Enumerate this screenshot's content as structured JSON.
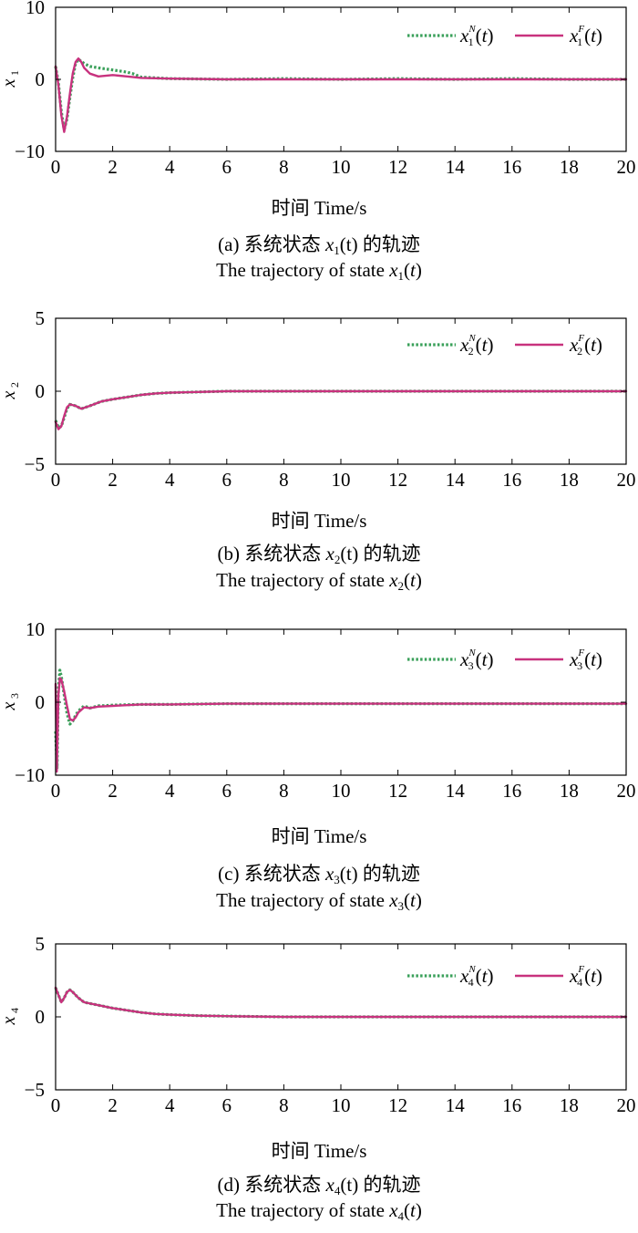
{
  "chart_data": [
    {
      "type": "line",
      "ylabel": "x1",
      "ylabel_main": "x",
      "ylabel_sub": "1",
      "xlabel": "时间 Time/s",
      "caption_prefix": "(a) 系统状态",
      "caption_state": "x",
      "caption_sub": "1",
      "caption_suffix": "(t) 的轨迹",
      "caption_en_prefix": "The trajectory of state",
      "xlim": [
        0,
        20
      ],
      "ylim": [
        -10,
        10
      ],
      "x_ticks": [
        "0",
        "2",
        "4",
        "6",
        "8",
        "10",
        "12",
        "14",
        "16",
        "18",
        "20"
      ],
      "y_ticks": [
        "10",
        "0",
        "−10"
      ],
      "legend_position": "top-right",
      "series": [
        {
          "name": "x1^N(t)",
          "legend_var": "x",
          "legend_sup": "N",
          "legend_sub": "1",
          "legend_arg": "(t)",
          "color": "#3aa05a",
          "style": "dotted",
          "points": [
            [
              0,
              1.8
            ],
            [
              0.1,
              -0.5
            ],
            [
              0.2,
              -4.5
            ],
            [
              0.3,
              -7.0
            ],
            [
              0.4,
              -5.5
            ],
            [
              0.5,
              -2.5
            ],
            [
              0.6,
              0.2
            ],
            [
              0.7,
              2.2
            ],
            [
              0.8,
              2.8
            ],
            [
              1.0,
              2.2
            ],
            [
              1.2,
              1.8
            ],
            [
              1.5,
              1.6
            ],
            [
              2.0,
              1.3
            ],
            [
              2.5,
              1.0
            ],
            [
              2.7,
              0.8
            ],
            [
              3.0,
              0.3
            ],
            [
              4,
              0.1
            ],
            [
              6,
              0.0
            ],
            [
              8,
              0.1
            ],
            [
              10,
              0.0
            ],
            [
              12,
              0.1
            ],
            [
              14,
              0.0
            ],
            [
              16,
              0.1
            ],
            [
              18,
              0.0
            ],
            [
              20,
              0.0
            ]
          ]
        },
        {
          "name": "x1^F(t)",
          "legend_var": "x",
          "legend_sup": "F",
          "legend_sub": "1",
          "legend_arg": "(t)",
          "color": "#c8327e",
          "style": "solid",
          "points": [
            [
              0,
              1.8
            ],
            [
              0.1,
              -0.8
            ],
            [
              0.2,
              -5.0
            ],
            [
              0.3,
              -7.3
            ],
            [
              0.4,
              -5.2
            ],
            [
              0.5,
              -2.0
            ],
            [
              0.6,
              0.8
            ],
            [
              0.7,
              2.4
            ],
            [
              0.8,
              2.9
            ],
            [
              0.9,
              2.4
            ],
            [
              1.0,
              1.6
            ],
            [
              1.2,
              0.8
            ],
            [
              1.5,
              0.4
            ],
            [
              2.0,
              0.6
            ],
            [
              2.5,
              0.4
            ],
            [
              3.0,
              0.2
            ],
            [
              4,
              0.1
            ],
            [
              6,
              0.0
            ],
            [
              8,
              0.0
            ],
            [
              10,
              0.0
            ],
            [
              12,
              0.0
            ],
            [
              14,
              0.0
            ],
            [
              16,
              0.0
            ],
            [
              18,
              0.0
            ],
            [
              20,
              0.0
            ]
          ]
        }
      ]
    },
    {
      "type": "line",
      "ylabel": "x2",
      "ylabel_main": "x",
      "ylabel_sub": "2",
      "xlabel": "时间 Time/s",
      "caption_prefix": "(b) 系统状态",
      "caption_state": "x",
      "caption_sub": "2",
      "caption_suffix": "(t) 的轨迹",
      "caption_en_prefix": "The trajectory of state",
      "xlim": [
        0,
        20
      ],
      "ylim": [
        -5,
        5
      ],
      "x_ticks": [
        "0",
        "2",
        "4",
        "6",
        "8",
        "10",
        "12",
        "14",
        "16",
        "18",
        "20"
      ],
      "y_ticks": [
        "5",
        "0",
        "−5"
      ],
      "legend_position": "top-right",
      "series": [
        {
          "name": "x2^N(t)",
          "legend_var": "x",
          "legend_sup": "N",
          "legend_sub": "2",
          "legend_arg": "(t)",
          "color": "#3aa05a",
          "style": "dotted",
          "points": [
            [
              0,
              -2.0
            ],
            [
              0.1,
              -2.5
            ],
            [
              0.2,
              -2.4
            ],
            [
              0.3,
              -1.8
            ],
            [
              0.4,
              -1.2
            ],
            [
              0.5,
              -0.9
            ],
            [
              0.7,
              -1.0
            ],
            [
              0.9,
              -1.2
            ],
            [
              1.2,
              -1.0
            ],
            [
              1.6,
              -0.7
            ],
            [
              2.0,
              -0.55
            ],
            [
              2.5,
              -0.4
            ],
            [
              3.0,
              -0.25
            ],
            [
              3.5,
              -0.15
            ],
            [
              4,
              -0.1
            ],
            [
              5,
              -0.05
            ],
            [
              6,
              0.0
            ],
            [
              8,
              0.0
            ],
            [
              10,
              0.0
            ],
            [
              12,
              0.0
            ],
            [
              14,
              0.0
            ],
            [
              16,
              0.0
            ],
            [
              18,
              0.0
            ],
            [
              20,
              0.0
            ]
          ]
        },
        {
          "name": "x2^F(t)",
          "legend_var": "x",
          "legend_sup": "F",
          "legend_sub": "2",
          "legend_arg": "(t)",
          "color": "#c8327e",
          "style": "solid",
          "points": [
            [
              0,
              -2.1
            ],
            [
              0.1,
              -2.6
            ],
            [
              0.2,
              -2.4
            ],
            [
              0.3,
              -1.7
            ],
            [
              0.4,
              -1.1
            ],
            [
              0.5,
              -0.9
            ],
            [
              0.7,
              -1.0
            ],
            [
              0.9,
              -1.2
            ],
            [
              1.2,
              -1.0
            ],
            [
              1.6,
              -0.7
            ],
            [
              2.0,
              -0.55
            ],
            [
              2.5,
              -0.4
            ],
            [
              3.0,
              -0.25
            ],
            [
              3.5,
              -0.15
            ],
            [
              4,
              -0.1
            ],
            [
              5,
              -0.05
            ],
            [
              6,
              0.0
            ],
            [
              8,
              0.0
            ],
            [
              10,
              0.0
            ],
            [
              12,
              0.0
            ],
            [
              14,
              0.0
            ],
            [
              16,
              0.0
            ],
            [
              18,
              0.0
            ],
            [
              20,
              0.0
            ]
          ]
        }
      ]
    },
    {
      "type": "line",
      "ylabel": "x3",
      "ylabel_main": "x",
      "ylabel_sub": "3",
      "xlabel": "时间 Time/s",
      "caption_prefix": "(c) 系统状态",
      "caption_state": "x",
      "caption_sub": "3",
      "caption_suffix": "(t) 的轨迹",
      "caption_en_prefix": "The trajectory of state",
      "xlim": [
        0,
        20
      ],
      "ylim": [
        -10,
        10
      ],
      "x_ticks": [
        "0",
        "2",
        "4",
        "6",
        "8",
        "10",
        "12",
        "14",
        "16",
        "18",
        "20"
      ],
      "y_ticks": [
        "10",
        "0",
        "−10"
      ],
      "legend_position": "top-right",
      "series": [
        {
          "name": "x3^N(t)",
          "legend_var": "x",
          "legend_sup": "N",
          "legend_sub": "3",
          "legend_arg": "(t)",
          "color": "#3aa05a",
          "style": "dotted",
          "points": [
            [
              0,
              -4.0
            ],
            [
              0.05,
              -9.0
            ],
            [
              0.1,
              2.0
            ],
            [
              0.15,
              4.4
            ],
            [
              0.2,
              3.5
            ],
            [
              0.3,
              1.0
            ],
            [
              0.4,
              -1.5
            ],
            [
              0.5,
              -3.0
            ],
            [
              0.6,
              -2.6
            ],
            [
              0.7,
              -1.8
            ],
            [
              0.8,
              -1.2
            ],
            [
              1.0,
              -0.5
            ],
            [
              1.2,
              -0.8
            ],
            [
              1.5,
              -0.5
            ],
            [
              2.0,
              -0.4
            ],
            [
              3,
              -0.3
            ],
            [
              4,
              -0.3
            ],
            [
              6,
              -0.2
            ],
            [
              8,
              -0.2
            ],
            [
              10,
              -0.2
            ],
            [
              12,
              -0.2
            ],
            [
              14,
              -0.2
            ],
            [
              16,
              -0.2
            ],
            [
              18,
              -0.2
            ],
            [
              20,
              -0.2
            ]
          ]
        },
        {
          "name": "x3^F(t)",
          "legend_var": "x",
          "legend_sup": "F",
          "legend_sub": "3",
          "legend_arg": "(t)",
          "color": "#c8327e",
          "style": "solid",
          "points": [
            [
              0,
              2.5
            ],
            [
              0.04,
              -9.5
            ],
            [
              0.1,
              1.0
            ],
            [
              0.15,
              3.3
            ],
            [
              0.2,
              3.1
            ],
            [
              0.3,
              1.5
            ],
            [
              0.4,
              -0.5
            ],
            [
              0.5,
              -2.3
            ],
            [
              0.6,
              -2.5
            ],
            [
              0.7,
              -2.1
            ],
            [
              0.8,
              -1.4
            ],
            [
              1.0,
              -0.7
            ],
            [
              1.2,
              -0.8
            ],
            [
              1.5,
              -0.6
            ],
            [
              2.0,
              -0.5
            ],
            [
              3,
              -0.3
            ],
            [
              4,
              -0.3
            ],
            [
              6,
              -0.2
            ],
            [
              8,
              -0.2
            ],
            [
              10,
              -0.2
            ],
            [
              12,
              -0.2
            ],
            [
              14,
              -0.2
            ],
            [
              16,
              -0.2
            ],
            [
              18,
              -0.2
            ],
            [
              20,
              -0.2
            ]
          ]
        }
      ]
    },
    {
      "type": "line",
      "ylabel": "x4",
      "ylabel_main": "x",
      "ylabel_sub": "4",
      "xlabel": "时间 Time/s",
      "caption_prefix": "(d) 系统状态",
      "caption_state": "x",
      "caption_sub": "4",
      "caption_suffix": "(t) 的轨迹",
      "caption_en_prefix": "The trajectory of state",
      "xlim": [
        0,
        20
      ],
      "ylim": [
        -5,
        5
      ],
      "x_ticks": [
        "0",
        "2",
        "4",
        "6",
        "8",
        "10",
        "12",
        "14",
        "16",
        "18",
        "20"
      ],
      "y_ticks": [
        "5",
        "0",
        "−5"
      ],
      "legend_position": "top-right",
      "series": [
        {
          "name": "x4^N(t)",
          "legend_var": "x",
          "legend_sup": "N",
          "legend_sub": "4",
          "legend_arg": "(t)",
          "color": "#3aa05a",
          "style": "dotted",
          "points": [
            [
              0,
              2.0
            ],
            [
              0.1,
              1.5
            ],
            [
              0.2,
              1.0
            ],
            [
              0.3,
              1.3
            ],
            [
              0.4,
              1.7
            ],
            [
              0.5,
              1.85
            ],
            [
              0.6,
              1.7
            ],
            [
              0.8,
              1.3
            ],
            [
              1.0,
              1.0
            ],
            [
              1.5,
              0.8
            ],
            [
              2.0,
              0.6
            ],
            [
              2.5,
              0.45
            ],
            [
              3.0,
              0.3
            ],
            [
              3.5,
              0.2
            ],
            [
              4,
              0.15
            ],
            [
              5,
              0.08
            ],
            [
              6,
              0.05
            ],
            [
              8,
              0.0
            ],
            [
              10,
              0.0
            ],
            [
              12,
              0.0
            ],
            [
              14,
              0.0
            ],
            [
              16,
              0.0
            ],
            [
              18,
              0.0
            ],
            [
              20,
              0.0
            ]
          ]
        },
        {
          "name": "x4^F(t)",
          "legend_var": "x",
          "legend_sup": "F",
          "legend_sub": "4",
          "legend_arg": "(t)",
          "color": "#c8327e",
          "style": "solid",
          "points": [
            [
              0,
              2.0
            ],
            [
              0.1,
              1.5
            ],
            [
              0.2,
              1.0
            ],
            [
              0.3,
              1.3
            ],
            [
              0.4,
              1.7
            ],
            [
              0.5,
              1.85
            ],
            [
              0.6,
              1.7
            ],
            [
              0.8,
              1.3
            ],
            [
              1.0,
              1.0
            ],
            [
              1.5,
              0.8
            ],
            [
              2.0,
              0.6
            ],
            [
              2.5,
              0.45
            ],
            [
              3.0,
              0.3
            ],
            [
              3.5,
              0.2
            ],
            [
              4,
              0.15
            ],
            [
              5,
              0.08
            ],
            [
              6,
              0.05
            ],
            [
              8,
              0.0
            ],
            [
              10,
              0.0
            ],
            [
              12,
              0.0
            ],
            [
              14,
              0.0
            ],
            [
              16,
              0.0
            ],
            [
              18,
              0.0
            ],
            [
              20,
              0.0
            ]
          ]
        }
      ]
    }
  ]
}
